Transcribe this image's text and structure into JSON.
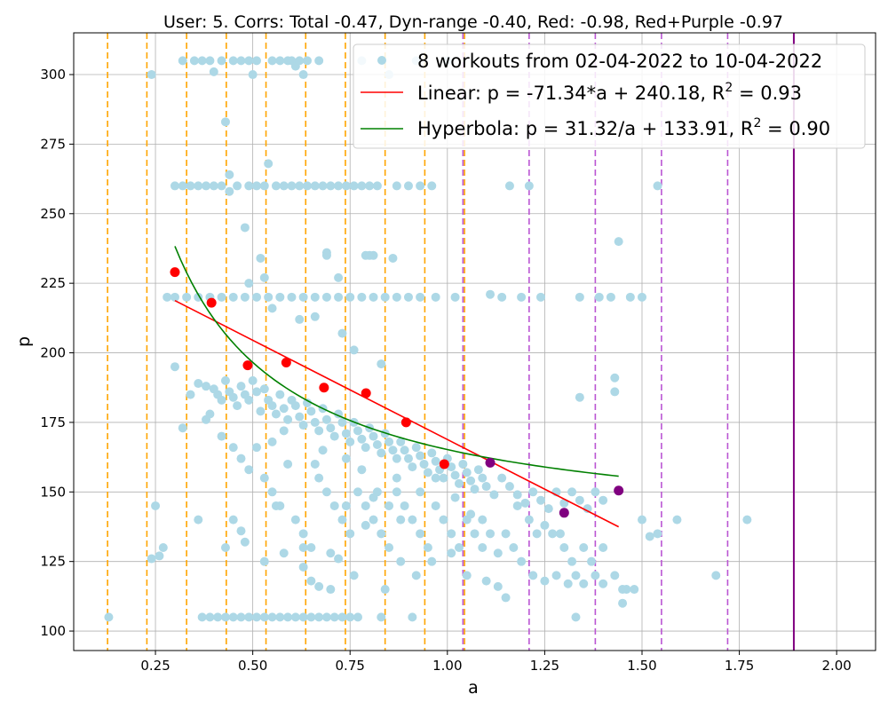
{
  "chart_data": {
    "type": "scatter",
    "title": "User: 5. Corrs: Total -0.47, Dyn-range -0.40, Red: -0.98, Red+Purple -0.97",
    "xlabel": "a",
    "ylabel": "p",
    "xlim": [
      0.04,
      2.1
    ],
    "ylim": [
      93,
      315
    ],
    "xticks": [
      "0.25",
      "0.50",
      "0.75",
      "1.00",
      "1.25",
      "1.50",
      "1.75",
      "2.00"
    ],
    "yticks": [
      "100",
      "125",
      "150",
      "175",
      "200",
      "225",
      "250",
      "275",
      "300"
    ],
    "grid": true,
    "legend_position": "top-right",
    "legend": {
      "scatter_label": "8 workouts from 02-04-2022 to 10-04-2022",
      "linear_label": "Linear: p = -71.34*a + 240.18, R",
      "linear_r2": " = 0.93",
      "hyperbola_label": "Hyperbola: p = 31.32/a + 133.91, R",
      "hyperbola_r2": " = 0.90",
      "superscript": "2"
    },
    "colors": {
      "scatter": "#add8e6",
      "red_points": "#ff0000",
      "purple_points": "#800080",
      "linear": "#ff0000",
      "hyperbola": "#008000",
      "orange_lines": "#ffa500",
      "purple_dashed_lines": "#ba55d3",
      "purple_solid_line": "#800080",
      "grid": "#b0b0b0"
    },
    "orange_dashed_x": [
      0.127,
      0.228,
      0.33,
      0.432,
      0.534,
      0.636,
      0.738,
      0.84,
      0.942,
      1.044
    ],
    "purple_dashed_x": [
      1.04,
      1.21,
      1.38,
      1.55,
      1.72
    ],
    "purple_solid_x": [
      1.89
    ],
    "red_points": {
      "x": [
        0.3,
        0.394,
        0.487,
        0.586,
        0.683,
        0.791,
        0.894,
        0.992
      ],
      "y": [
        229,
        218,
        195.5,
        196.5,
        187.5,
        185.5,
        175,
        160
      ]
    },
    "purple_points": {
      "x": [
        1.11,
        1.3,
        1.44
      ],
      "y": [
        160.5,
        142.5,
        150.5
      ]
    },
    "linear_fit": {
      "slope": -71.34,
      "intercept": 240.18,
      "x_range": [
        0.3,
        1.44
      ]
    },
    "hyperbola_fit": {
      "a": 31.32,
      "b": 133.91,
      "x_range": [
        0.3,
        1.44
      ]
    },
    "scatter_points": [
      [
        0.13,
        105
      ],
      [
        0.24,
        300
      ],
      [
        0.25,
        145
      ],
      [
        0.24,
        126
      ],
      [
        0.27,
        130
      ],
      [
        0.28,
        220
      ],
      [
        0.32,
        305
      ],
      [
        0.32,
        173
      ],
      [
        0.35,
        305
      ],
      [
        0.37,
        305
      ],
      [
        0.39,
        305
      ],
      [
        0.4,
        301
      ],
      [
        0.42,
        305
      ],
      [
        0.43,
        283
      ],
      [
        0.44,
        264
      ],
      [
        0.44,
        258
      ],
      [
        0.45,
        305
      ],
      [
        0.47,
        305
      ],
      [
        0.48,
        245
      ],
      [
        0.49,
        305
      ],
      [
        0.5,
        300
      ],
      [
        0.51,
        305
      ],
      [
        0.52,
        234
      ],
      [
        0.53,
        227
      ],
      [
        0.54,
        268
      ],
      [
        0.55,
        305
      ],
      [
        0.57,
        305
      ],
      [
        0.59,
        305
      ],
      [
        0.6,
        305
      ],
      [
        0.61,
        303
      ],
      [
        0.62,
        305
      ],
      [
        0.63,
        300
      ],
      [
        0.64,
        305
      ],
      [
        0.67,
        305
      ],
      [
        0.69,
        235
      ],
      [
        0.69,
        236
      ],
      [
        0.72,
        227
      ],
      [
        0.78,
        305
      ],
      [
        0.79,
        235
      ],
      [
        0.8,
        235
      ],
      [
        0.81,
        235
      ],
      [
        0.85,
        300
      ],
      [
        0.86,
        234
      ],
      [
        0.92,
        305
      ],
      [
        1.0,
        305
      ],
      [
        0.3,
        260
      ],
      [
        0.32,
        260
      ],
      [
        0.34,
        260
      ],
      [
        0.36,
        260
      ],
      [
        0.38,
        260
      ],
      [
        0.4,
        260
      ],
      [
        0.42,
        260
      ],
      [
        0.46,
        260
      ],
      [
        0.49,
        260
      ],
      [
        0.51,
        260
      ],
      [
        0.53,
        260
      ],
      [
        0.56,
        260
      ],
      [
        0.58,
        260
      ],
      [
        0.6,
        260
      ],
      [
        0.62,
        260
      ],
      [
        0.64,
        260
      ],
      [
        0.66,
        260
      ],
      [
        0.68,
        260
      ],
      [
        0.7,
        260
      ],
      [
        0.72,
        260
      ],
      [
        0.74,
        260
      ],
      [
        0.76,
        260
      ],
      [
        0.78,
        260
      ],
      [
        0.8,
        260
      ],
      [
        0.82,
        260
      ],
      [
        0.87,
        260
      ],
      [
        0.9,
        260
      ],
      [
        0.93,
        260
      ],
      [
        0.96,
        260
      ],
      [
        1.16,
        260
      ],
      [
        1.21,
        260
      ],
      [
        1.54,
        260
      ],
      [
        0.3,
        220
      ],
      [
        0.33,
        220
      ],
      [
        0.36,
        220
      ],
      [
        0.39,
        220
      ],
      [
        0.42,
        220
      ],
      [
        0.45,
        220
      ],
      [
        0.48,
        220
      ],
      [
        0.51,
        220
      ],
      [
        0.54,
        220
      ],
      [
        0.57,
        220
      ],
      [
        0.6,
        220
      ],
      [
        0.63,
        220
      ],
      [
        0.66,
        220
      ],
      [
        0.69,
        220
      ],
      [
        0.72,
        220
      ],
      [
        0.75,
        220
      ],
      [
        0.78,
        220
      ],
      [
        0.81,
        220
      ],
      [
        0.84,
        220
      ],
      [
        0.87,
        220
      ],
      [
        0.9,
        220
      ],
      [
        0.93,
        220
      ],
      [
        0.97,
        220
      ],
      [
        1.02,
        220
      ],
      [
        1.11,
        221
      ],
      [
        1.14,
        220
      ],
      [
        1.19,
        220
      ],
      [
        1.24,
        220
      ],
      [
        1.34,
        220
      ],
      [
        1.39,
        220
      ],
      [
        1.42,
        220
      ],
      [
        1.47,
        220
      ],
      [
        1.5,
        220
      ],
      [
        0.49,
        225
      ],
      [
        0.55,
        216
      ],
      [
        0.62,
        212
      ],
      [
        0.66,
        213
      ],
      [
        0.73,
        207
      ],
      [
        0.76,
        201
      ],
      [
        0.83,
        196
      ],
      [
        0.36,
        189
      ],
      [
        0.38,
        188
      ],
      [
        0.4,
        187
      ],
      [
        0.41,
        185
      ],
      [
        0.42,
        183
      ],
      [
        0.43,
        190
      ],
      [
        0.44,
        186
      ],
      [
        0.45,
        184
      ],
      [
        0.46,
        181
      ],
      [
        0.47,
        188
      ],
      [
        0.48,
        185
      ],
      [
        0.49,
        183
      ],
      [
        0.5,
        190
      ],
      [
        0.51,
        186
      ],
      [
        0.52,
        179
      ],
      [
        0.53,
        187
      ],
      [
        0.54,
        183
      ],
      [
        0.55,
        181
      ],
      [
        0.56,
        178
      ],
      [
        0.57,
        185
      ],
      [
        0.58,
        180
      ],
      [
        0.59,
        176
      ],
      [
        0.6,
        183
      ],
      [
        0.61,
        181
      ],
      [
        0.62,
        177
      ],
      [
        0.63,
        174
      ],
      [
        0.64,
        182
      ],
      [
        0.65,
        179
      ],
      [
        0.66,
        175
      ],
      [
        0.67,
        172
      ],
      [
        0.68,
        180
      ],
      [
        0.69,
        176
      ],
      [
        0.7,
        173
      ],
      [
        0.71,
        170
      ],
      [
        0.72,
        178
      ],
      [
        0.73,
        175
      ],
      [
        0.74,
        171
      ],
      [
        0.75,
        168
      ],
      [
        0.76,
        175
      ],
      [
        0.77,
        172
      ],
      [
        0.78,
        169
      ],
      [
        0.79,
        166
      ],
      [
        0.8,
        173
      ],
      [
        0.81,
        170
      ],
      [
        0.82,
        167
      ],
      [
        0.83,
        164
      ],
      [
        0.84,
        171
      ],
      [
        0.85,
        168
      ],
      [
        0.86,
        165
      ],
      [
        0.87,
        162
      ],
      [
        0.88,
        168
      ],
      [
        0.89,
        165
      ],
      [
        0.9,
        162
      ],
      [
        0.91,
        159
      ],
      [
        0.92,
        166
      ],
      [
        0.93,
        163
      ],
      [
        0.94,
        160
      ],
      [
        0.95,
        157
      ],
      [
        0.96,
        164
      ],
      [
        0.97,
        161
      ],
      [
        0.98,
        158
      ],
      [
        0.99,
        155
      ],
      [
        1.0,
        162
      ],
      [
        1.01,
        159
      ],
      [
        1.02,
        156
      ],
      [
        1.03,
        153
      ],
      [
        1.04,
        160
      ],
      [
        1.05,
        157
      ],
      [
        1.06,
        154
      ],
      [
        1.07,
        151
      ],
      [
        1.08,
        158
      ],
      [
        1.09,
        155
      ],
      [
        1.1,
        152
      ],
      [
        1.12,
        149
      ],
      [
        1.14,
        155
      ],
      [
        1.16,
        152
      ],
      [
        1.18,
        149
      ],
      [
        1.2,
        146
      ],
      [
        1.22,
        150
      ],
      [
        1.24,
        147
      ],
      [
        1.26,
        144
      ],
      [
        1.28,
        150
      ],
      [
        1.3,
        146
      ],
      [
        1.32,
        150
      ],
      [
        1.34,
        147
      ],
      [
        1.36,
        144
      ],
      [
        1.38,
        150
      ],
      [
        1.4,
        147
      ],
      [
        0.38,
        176
      ],
      [
        0.42,
        170
      ],
      [
        0.45,
        166
      ],
      [
        0.47,
        162
      ],
      [
        0.49,
        158
      ],
      [
        0.51,
        166
      ],
      [
        0.53,
        155
      ],
      [
        0.55,
        150
      ],
      [
        0.57,
        145
      ],
      [
        0.59,
        160
      ],
      [
        0.61,
        140
      ],
      [
        0.63,
        135
      ],
      [
        0.65,
        130
      ],
      [
        0.67,
        155
      ],
      [
        0.69,
        150
      ],
      [
        0.71,
        145
      ],
      [
        0.73,
        140
      ],
      [
        0.75,
        135
      ],
      [
        0.77,
        150
      ],
      [
        0.79,
        145
      ],
      [
        0.81,
        140
      ],
      [
        0.83,
        135
      ],
      [
        0.85,
        130
      ],
      [
        0.87,
        150
      ],
      [
        0.89,
        145
      ],
      [
        0.91,
        140
      ],
      [
        0.93,
        135
      ],
      [
        0.95,
        130
      ],
      [
        0.97,
        145
      ],
      [
        0.99,
        140
      ],
      [
        1.01,
        135
      ],
      [
        1.03,
        130
      ],
      [
        1.05,
        140
      ],
      [
        1.07,
        135
      ],
      [
        1.09,
        130
      ],
      [
        1.11,
        135
      ],
      [
        1.13,
        128
      ],
      [
        1.15,
        135
      ],
      [
        1.17,
        130
      ],
      [
        1.19,
        125
      ],
      [
        1.21,
        140
      ],
      [
        1.23,
        135
      ],
      [
        1.27,
        135
      ],
      [
        1.3,
        130
      ],
      [
        1.32,
        125
      ],
      [
        1.35,
        130
      ],
      [
        1.37,
        125
      ],
      [
        1.4,
        130
      ],
      [
        0.45,
        140
      ],
      [
        0.47,
        136
      ],
      [
        0.48,
        132
      ],
      [
        0.53,
        125
      ],
      [
        0.56,
        145
      ],
      [
        0.58,
        128
      ],
      [
        0.63,
        123
      ],
      [
        0.65,
        118
      ],
      [
        0.67,
        116
      ],
      [
        0.7,
        115
      ],
      [
        0.72,
        126
      ],
      [
        0.76,
        120
      ],
      [
        0.79,
        138
      ],
      [
        0.84,
        115
      ],
      [
        0.88,
        125
      ],
      [
        0.92,
        120
      ],
      [
        0.96,
        125
      ],
      [
        1.01,
        128
      ],
      [
        1.05,
        120
      ],
      [
        1.1,
        118
      ],
      [
        1.13,
        116
      ],
      [
        1.15,
        112
      ],
      [
        1.22,
        120
      ],
      [
        1.25,
        118
      ],
      [
        1.28,
        120
      ],
      [
        1.31,
        117
      ],
      [
        1.33,
        120
      ],
      [
        1.35,
        117
      ],
      [
        1.38,
        120
      ],
      [
        1.4,
        117
      ],
      [
        1.43,
        120
      ],
      [
        1.45,
        115
      ],
      [
        1.46,
        115
      ],
      [
        1.48,
        115
      ],
      [
        1.45,
        110
      ],
      [
        1.33,
        105
      ],
      [
        1.44,
        240
      ],
      [
        1.43,
        191
      ],
      [
        1.43,
        186
      ],
      [
        1.34,
        184
      ],
      [
        1.5,
        140
      ],
      [
        1.54,
        135
      ],
      [
        1.59,
        140
      ],
      [
        1.69,
        120
      ],
      [
        1.77,
        140
      ],
      [
        1.52,
        134
      ],
      [
        0.26,
        127
      ],
      [
        0.37,
        105
      ],
      [
        0.39,
        105
      ],
      [
        0.41,
        105
      ],
      [
        0.43,
        105
      ],
      [
        0.45,
        105
      ],
      [
        0.47,
        105
      ],
      [
        0.49,
        105
      ],
      [
        0.51,
        105
      ],
      [
        0.53,
        105
      ],
      [
        0.55,
        105
      ],
      [
        0.57,
        105
      ],
      [
        0.59,
        105
      ],
      [
        0.61,
        105
      ],
      [
        0.63,
        105
      ],
      [
        0.65,
        105
      ],
      [
        0.67,
        105
      ],
      [
        0.69,
        105
      ],
      [
        0.71,
        105
      ],
      [
        0.73,
        105
      ],
      [
        0.75,
        105
      ],
      [
        0.77,
        105
      ],
      [
        0.83,
        105
      ],
      [
        0.91,
        105
      ],
      [
        0.43,
        130
      ],
      [
        0.36,
        140
      ],
      [
        0.39,
        178
      ],
      [
        0.3,
        195
      ],
      [
        0.34,
        185
      ],
      [
        0.63,
        130
      ],
      [
        0.7,
        128
      ],
      [
        0.74,
        145
      ],
      [
        0.81,
        148
      ],
      [
        0.87,
        155
      ],
      [
        0.55,
        168
      ],
      [
        0.58,
        172
      ],
      [
        0.66,
        160
      ],
      [
        0.68,
        165
      ],
      [
        0.74,
        162
      ],
      [
        0.78,
        158
      ],
      [
        0.82,
        150
      ],
      [
        0.85,
        145
      ],
      [
        0.88,
        140
      ],
      [
        0.93,
        150
      ],
      [
        0.97,
        155
      ],
      [
        1.02,
        148
      ],
      [
        1.06,
        142
      ],
      [
        1.09,
        140
      ],
      [
        1.18,
        145
      ],
      [
        1.25,
        138
      ],
      [
        1.29,
        135
      ]
    ]
  }
}
